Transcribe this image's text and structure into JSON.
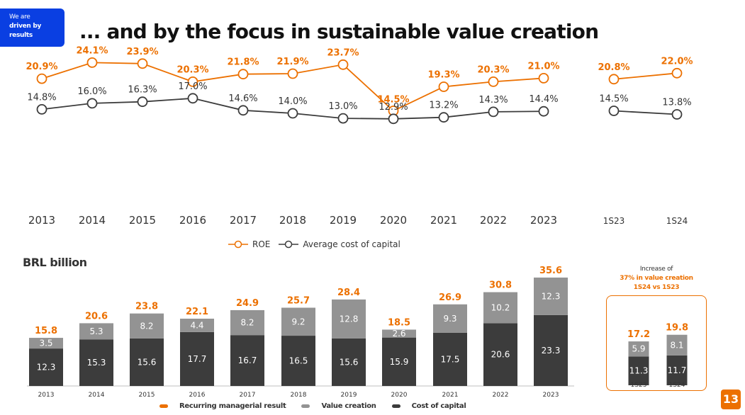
{
  "badge": {
    "line1": "We are",
    "line2": "driven by",
    "line3": "results"
  },
  "title": "... and by the focus in sustainable value creation",
  "unit_label": "BRL billion",
  "page_number": "13",
  "colors": {
    "orange": "#ec7000",
    "dark": "#3c3c3c",
    "gray": "#939393",
    "blue": "#0a3fe2"
  },
  "increase_note": {
    "line1": "Increase of",
    "line2": "37% in value creation",
    "line3": "1S24 vs 1S23"
  },
  "chart_data": [
    {
      "type": "line",
      "categories": [
        "2013",
        "2014",
        "2015",
        "2016",
        "2017",
        "2018",
        "2019",
        "2020",
        "2021",
        "2022",
        "2023",
        "1S23",
        "1S24"
      ],
      "series": [
        {
          "name": "ROE",
          "values": [
            20.9,
            24.1,
            23.9,
            20.3,
            21.8,
            21.9,
            23.7,
            14.5,
            19.3,
            20.3,
            21.0,
            20.8,
            22.0
          ],
          "labels": [
            "20.9%",
            "24.1%",
            "23.9%",
            "20.3%",
            "21.8%",
            "21.9%",
            "23.7%",
            "14.5%",
            "19.3%",
            "20.3%",
            "21.0%",
            "20.8%",
            "22.0%"
          ]
        },
        {
          "name": "Average cost of capital",
          "values": [
            14.8,
            16.0,
            16.3,
            17.0,
            14.6,
            14.0,
            13.0,
            12.9,
            13.2,
            14.3,
            14.4,
            14.5,
            13.8
          ],
          "labels": [
            "14.8%",
            "16.0%",
            "16.3%",
            "17.0%",
            "14.6%",
            "14.0%",
            "13.0%",
            "12.9%",
            "13.2%",
            "14.3%",
            "14.4%",
            "14.5%",
            "13.8%"
          ]
        }
      ],
      "segments": [
        [
          0,
          10
        ],
        [
          11,
          12
        ]
      ]
    },
    {
      "type": "bar",
      "stacked": true,
      "categories": [
        "2013",
        "2014",
        "2015",
        "2016",
        "2017",
        "2018",
        "2019",
        "2020",
        "2021",
        "2022",
        "2023",
        "1S23",
        "1S24"
      ],
      "series": [
        {
          "name": "Cost of capital",
          "values": [
            12.3,
            15.3,
            15.6,
            17.7,
            16.7,
            16.5,
            15.6,
            15.9,
            17.5,
            20.6,
            23.3,
            11.3,
            11.7
          ],
          "labels": [
            "12.3",
            "15.3",
            "15.6",
            "17.7",
            "16.7",
            "16.5",
            "15.6",
            "15.9",
            "17.5",
            "20.6",
            "23.3",
            "11.3",
            "11.7"
          ]
        },
        {
          "name": "Value creation",
          "values": [
            3.5,
            5.3,
            8.2,
            4.4,
            8.2,
            9.2,
            12.8,
            2.6,
            9.3,
            10.2,
            12.3,
            5.9,
            8.1
          ],
          "labels": [
            "3.5",
            "5.3",
            "8.2",
            "4.4",
            "8.2",
            "9.2",
            "12.8",
            "2.6",
            "9.3",
            "10.2",
            "12.3",
            "5.9",
            "8.1"
          ]
        },
        {
          "name": "Recurring managerial result",
          "values": [
            15.8,
            20.6,
            23.8,
            22.1,
            24.9,
            25.7,
            28.4,
            18.5,
            26.9,
            30.8,
            35.6,
            17.2,
            19.8
          ],
          "labels": [
            "15.8",
            "20.6",
            "23.8",
            "22.1",
            "24.9",
            "25.7",
            "28.4",
            "18.5",
            "26.9",
            "30.8",
            "35.6",
            "17.2",
            "19.8"
          ]
        }
      ]
    }
  ]
}
